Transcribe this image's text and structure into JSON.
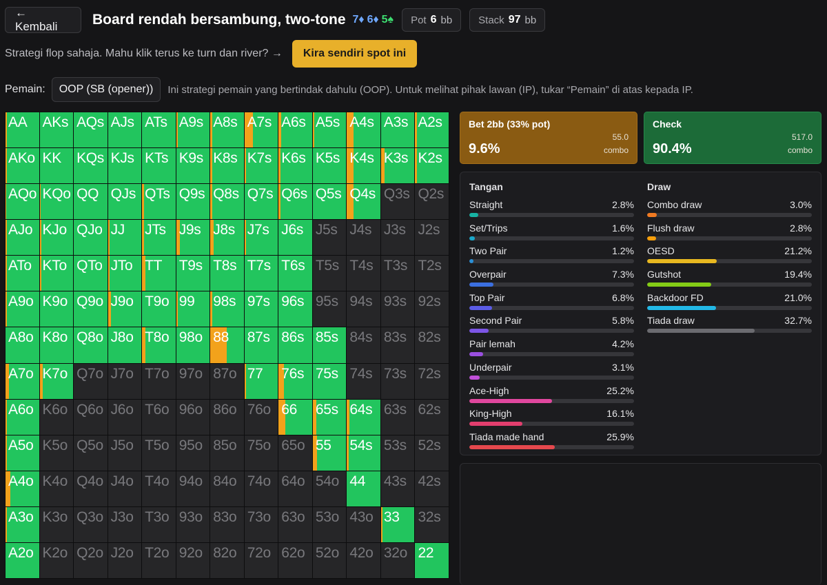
{
  "header": {
    "back_label": "← Kembali",
    "title": "Board rendah bersambung, two-tone",
    "board": [
      {
        "text": "7♦",
        "color": "#6fa8ff"
      },
      {
        "text": "6♦",
        "color": "#6fa8ff"
      },
      {
        "text": "5♠",
        "color": "#3ddc70"
      }
    ],
    "pot_label": "Pot",
    "pot_value": "6",
    "pot_unit": "bb",
    "stack_label": "Stack",
    "stack_value": "97",
    "stack_unit": "bb"
  },
  "subheader": {
    "text": "Strategi flop sahaja. Mahu klik terus ke turn dan river? →",
    "cta_label": "Kira sendiri spot ini"
  },
  "player": {
    "label": "Pemain:",
    "selected": "OOP (SB (opener))",
    "note": "Ini strategi pemain yang bertindak dahulu (OOP). Untuk melihat pihak lawan (IP), tukar “Pemain” di atas kepada IP."
  },
  "actions": [
    {
      "name": "Bet 2bb (33% pot)",
      "pct": "9.6%",
      "combos": "55.0",
      "unit": "combo",
      "color": "#f2a21b"
    },
    {
      "name": "Check",
      "pct": "90.4%",
      "combos": "517.0",
      "unit": "combo",
      "color": "#22c55e"
    }
  ],
  "colors": {
    "bet": "#f2a21b",
    "check": "#22c55e",
    "empty": "#262628"
  },
  "matrix": {
    "ranks": [
      "A",
      "K",
      "Q",
      "J",
      "T",
      "9",
      "8",
      "7",
      "6",
      "5",
      "4",
      "3",
      "2"
    ],
    "in_range": [
      "1111111111111",
      "1111111111111",
      "1111111111100",
      "1111111110000",
      "1111111110000",
      "1111111110000",
      "1111111111000",
      "1100000111000",
      "1000000011100",
      "1000000001100",
      "1000000000100",
      "1000000000010",
      "1000000000001"
    ],
    "bet_frac": [
      [
        0.05,
        0,
        0,
        0,
        0,
        0.05,
        0.05,
        0.25,
        0.08,
        0.05,
        0.2,
        0,
        0.05
      ],
      [
        0.05,
        0,
        0,
        0,
        0,
        0,
        0.05,
        0.05,
        0.05,
        0,
        0.2,
        0.1,
        0.05
      ],
      [
        0.02,
        0.02,
        0,
        0,
        0.05,
        0,
        0.05,
        0,
        0.05,
        0,
        0.2,
        0,
        0
      ],
      [
        0.05,
        0.05,
        0,
        0.05,
        0.05,
        0.1,
        0.1,
        0.05,
        0,
        0,
        0,
        0,
        0
      ],
      [
        0.05,
        0.05,
        0,
        0.05,
        0.1,
        0,
        0,
        0,
        0,
        0,
        0,
        0,
        0
      ],
      [
        0.05,
        0,
        0,
        0.1,
        0,
        0.05,
        0.05,
        0,
        0,
        0,
        0,
        0,
        0
      ],
      [
        0,
        0,
        0,
        0,
        0.1,
        0,
        0.5,
        0,
        0,
        0,
        0,
        0,
        0
      ],
      [
        0.1,
        0.1,
        0,
        0,
        0,
        0,
        0,
        0.05,
        0.15,
        0,
        0,
        0,
        0
      ],
      [
        0.05,
        0,
        0,
        0,
        0,
        0,
        0,
        0,
        0.2,
        0.1,
        0.07,
        0,
        0
      ],
      [
        0.05,
        0,
        0,
        0,
        0,
        0,
        0,
        0,
        0,
        0.13,
        0.05,
        0,
        0
      ],
      [
        0.15,
        0,
        0,
        0,
        0,
        0,
        0,
        0,
        0,
        0,
        0,
        0,
        0
      ],
      [
        0.05,
        0,
        0,
        0,
        0,
        0,
        0,
        0,
        0,
        0,
        0,
        0.05,
        0
      ],
      [
        0,
        0,
        0,
        0,
        0,
        0,
        0,
        0,
        0,
        0,
        0,
        0,
        0
      ]
    ]
  },
  "breakdown": {
    "made_title": "Tangan",
    "draw_title": "Draw",
    "made": [
      {
        "name": "Straight",
        "pct": "2.8%",
        "value": 2.8,
        "color": "#17b3a3"
      },
      {
        "name": "Set/Trips",
        "pct": "1.6%",
        "value": 1.6,
        "color": "#1aa6c9"
      },
      {
        "name": "Two Pair",
        "pct": "1.2%",
        "value": 1.2,
        "color": "#2a8fd6"
      },
      {
        "name": "Overpair",
        "pct": "7.3%",
        "value": 7.3,
        "color": "#3b6fe0"
      },
      {
        "name": "Top Pair",
        "pct": "6.8%",
        "value": 6.8,
        "color": "#5b5ce6"
      },
      {
        "name": "Second Pair",
        "pct": "5.8%",
        "value": 5.8,
        "color": "#7c55e6"
      },
      {
        "name": "Pair lemah",
        "pct": "4.2%",
        "value": 4.2,
        "color": "#9a4fe0"
      },
      {
        "name": "Underpair",
        "pct": "3.1%",
        "value": 3.1,
        "color": "#c04fd8"
      },
      {
        "name": "Ace-High",
        "pct": "25.2%",
        "value": 25.2,
        "color": "#e0479e"
      },
      {
        "name": "King-High",
        "pct": "16.1%",
        "value": 16.1,
        "color": "#e23e6e"
      },
      {
        "name": "Tiada made hand",
        "pct": "25.9%",
        "value": 25.9,
        "color": "#e5484d"
      }
    ],
    "draws": [
      {
        "name": "Combo draw",
        "pct": "3.0%",
        "value": 3.0,
        "color": "#f07a22"
      },
      {
        "name": "Flush draw",
        "pct": "2.8%",
        "value": 2.8,
        "color": "#f59e0b"
      },
      {
        "name": "OESD",
        "pct": "21.2%",
        "value": 21.2,
        "color": "#e8b820"
      },
      {
        "name": "Gutshot",
        "pct": "19.4%",
        "value": 19.4,
        "color": "#84cc16"
      },
      {
        "name": "Backdoor FD",
        "pct": "21.0%",
        "value": 21.0,
        "color": "#22b8e6"
      },
      {
        "name": "Tiada draw",
        "pct": "32.7%",
        "value": 32.7,
        "color": "#6b6b70"
      }
    ]
  }
}
